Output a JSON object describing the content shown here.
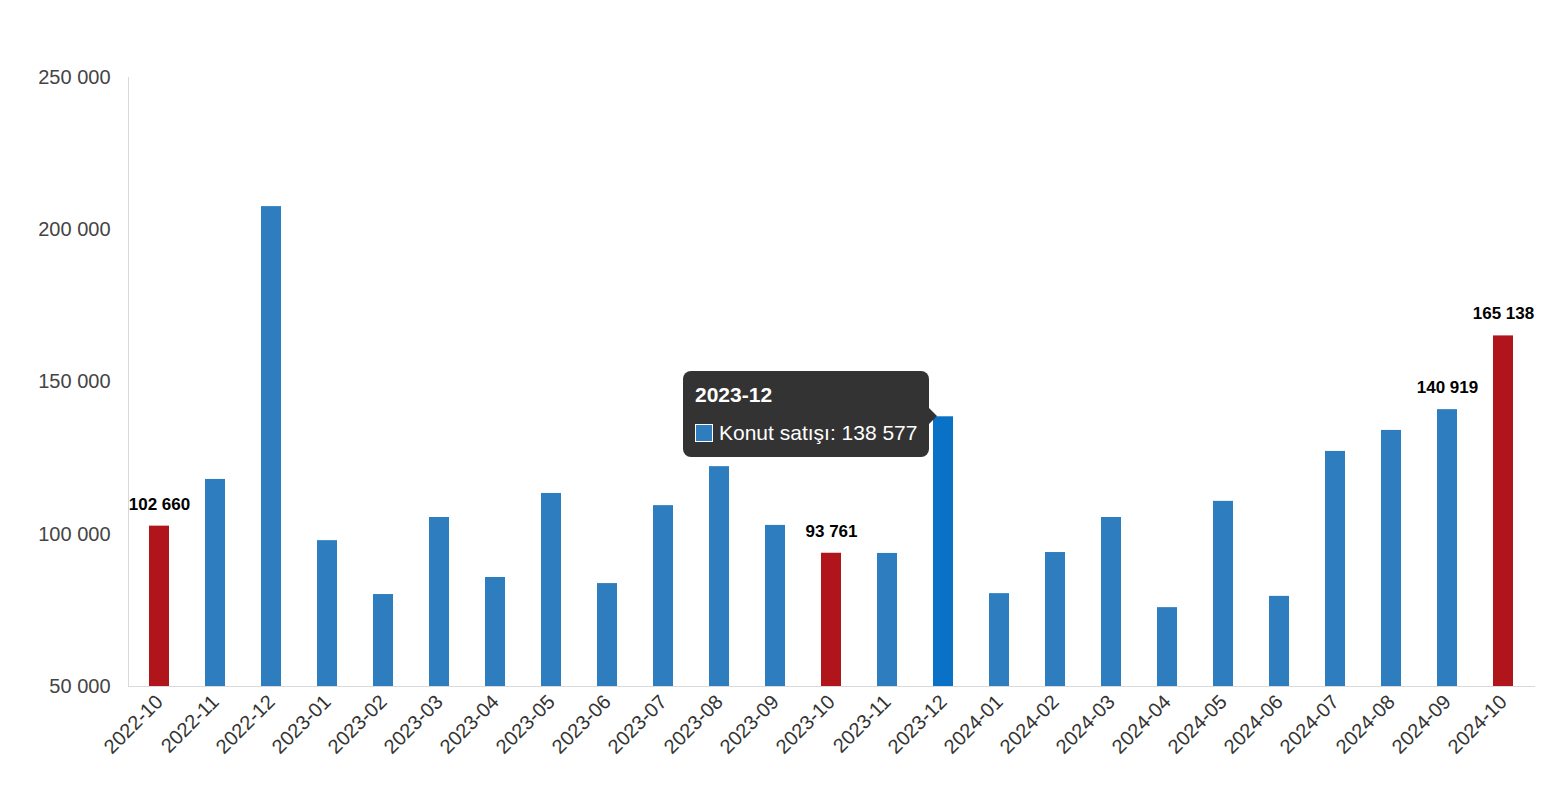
{
  "chart_data": {
    "type": "bar",
    "categories": [
      "2022-10",
      "2022-11",
      "2022-12",
      "2023-01",
      "2023-02",
      "2023-03",
      "2023-04",
      "2023-05",
      "2023-06",
      "2023-07",
      "2023-08",
      "2023-09",
      "2023-10",
      "2023-11",
      "2023-12",
      "2024-01",
      "2024-02",
      "2024-03",
      "2024-04",
      "2024-05",
      "2024-06",
      "2024-07",
      "2024-08",
      "2024-09",
      "2024-10"
    ],
    "values": [
      102660,
      118000,
      207600,
      97900,
      80200,
      105500,
      85800,
      113400,
      83800,
      109400,
      122200,
      102900,
      93761,
      93700,
      138577,
      80500,
      94000,
      105500,
      75900,
      110800,
      79600,
      127200,
      134100,
      140919,
      165138
    ],
    "value_labels": [
      "102 660",
      null,
      null,
      null,
      null,
      null,
      null,
      null,
      null,
      null,
      null,
      null,
      "93 761",
      null,
      null,
      null,
      null,
      null,
      null,
      null,
      null,
      null,
      null,
      "140 919",
      "165 138"
    ],
    "data_labels": true,
    "color": "#2e7ebf",
    "colors": [
      "#b0151b",
      "#2e7ebf",
      "#2e7ebf",
      "#2e7ebf",
      "#2e7ebf",
      "#2e7ebf",
      "#2e7ebf",
      "#2e7ebf",
      "#2e7ebf",
      "#2e7ebf",
      "#2e7ebf",
      "#2e7ebf",
      "#b0151b",
      "#2e7ebf",
      "#0a72c6",
      "#2e7ebf",
      "#2e7ebf",
      "#2e7ebf",
      "#2e7ebf",
      "#2e7ebf",
      "#2e7ebf",
      "#2e7ebf",
      "#2e7ebf",
      "#2e7ebf",
      "#b0151b"
    ],
    "ylim": [
      50000,
      250000
    ],
    "yticks": [
      {
        "value": 50000,
        "label": "50 000"
      },
      {
        "value": 100000,
        "label": "100 000"
      },
      {
        "value": 150000,
        "label": "150 000"
      },
      {
        "value": 200000,
        "label": "200 000"
      },
      {
        "value": 250000,
        "label": "250 000"
      }
    ],
    "grid": false,
    "annotations": [
      {
        "x": "2023-12",
        "title": "2023-12",
        "text": "Konut satışı: 138 577"
      }
    ]
  }
}
